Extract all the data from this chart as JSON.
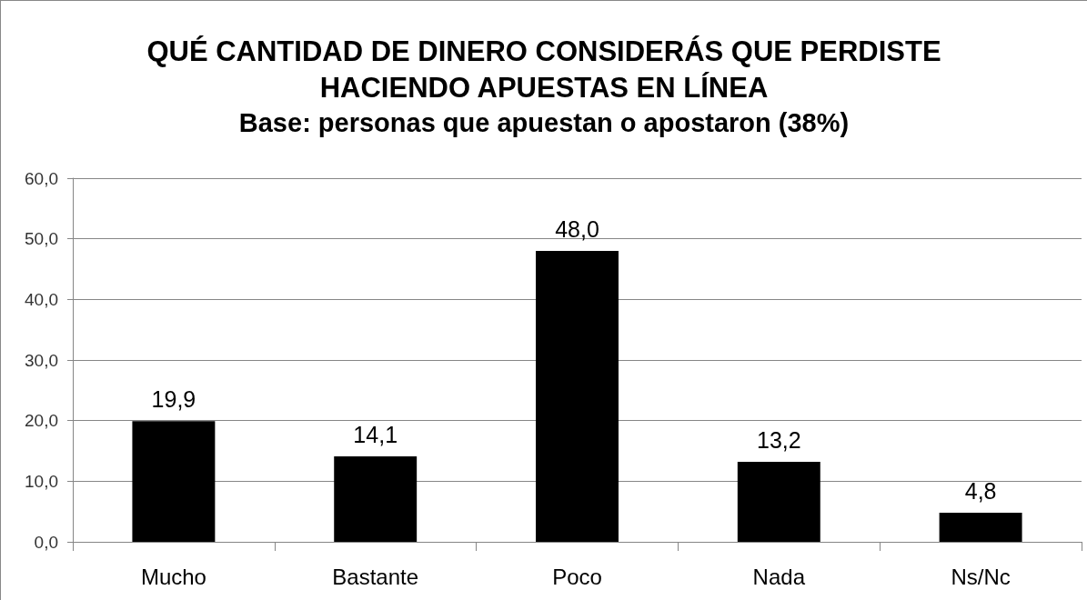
{
  "chart_data": {
    "type": "bar",
    "title": "QUÉ CANTIDAD DE DINERO CONSIDERÁS QUE PERDISTE\nHACIENDO APUESTAS EN LÍNEA",
    "subtitle": "Base: personas que apuestan o apostaron (38%)",
    "categories": [
      "Mucho",
      "Bastante",
      "Poco",
      "Nada",
      "Ns/Nc"
    ],
    "values": [
      19.9,
      14.1,
      48.0,
      13.2,
      4.8
    ],
    "color": "#000000",
    "value_labels": [
      "19,9",
      "14,1",
      "48,0",
      "13,2",
      "4,8"
    ],
    "ylim": [
      0,
      60
    ],
    "yticks": [
      {
        "value": 0,
        "label": "0,0"
      },
      {
        "value": 10,
        "label": "10,0"
      },
      {
        "value": 20,
        "label": "20,0"
      },
      {
        "value": 30,
        "label": "30,0"
      },
      {
        "value": 40,
        "label": "40,0"
      },
      {
        "value": 50,
        "label": "50,0"
      },
      {
        "value": 60,
        "label": "60,0"
      }
    ],
    "grid": "y"
  }
}
